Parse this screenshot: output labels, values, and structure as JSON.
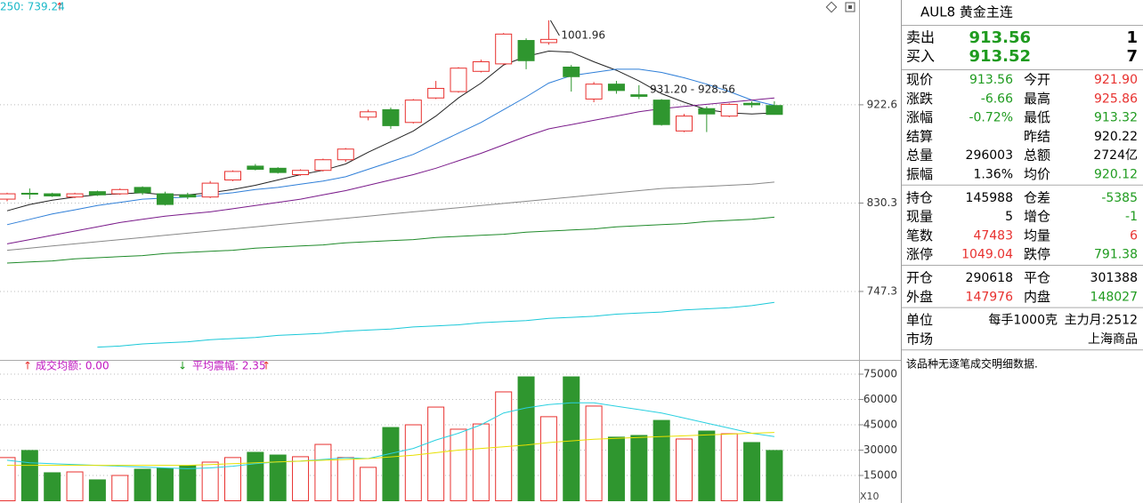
{
  "chart_data": [
    {
      "type": "candlestick",
      "legend_text": "250: 739.24",
      "legend_color": "#1ab8c8",
      "up_color": "#e8312f",
      "down_color": "#2f962f",
      "open": [
        834,
        839.5,
        839,
        836,
        841,
        839,
        845,
        839,
        838,
        836,
        852,
        865,
        863,
        857,
        861,
        871,
        911,
        918,
        906,
        929,
        935,
        954,
        961,
        983,
        981,
        958,
        928,
        942,
        932,
        927,
        898,
        919,
        912,
        924,
        921.9
      ],
      "high": [
        840,
        844,
        840,
        840,
        842,
        844,
        846,
        841,
        840,
        851,
        861,
        867,
        864,
        862,
        872,
        882,
        918,
        920,
        928,
        945,
        958,
        965,
        990,
        985,
        1001.96,
        960,
        944,
        945,
        941,
        928,
        914,
        921,
        924,
        925.86,
        925.86
      ],
      "low": [
        832,
        834,
        836,
        835,
        837,
        838,
        838,
        828,
        834,
        835,
        851,
        861,
        858,
        856,
        860,
        869,
        908,
        900,
        905,
        928,
        934,
        953,
        960,
        956,
        979,
        935,
        925,
        933,
        928,
        903,
        897,
        897,
        911,
        920,
        913.32
      ],
      "close": [
        839,
        839,
        837,
        839,
        838,
        843,
        840,
        829,
        836,
        849,
        860,
        862,
        859,
        861,
        871,
        881,
        916,
        903,
        927,
        938,
        957,
        963,
        989,
        964,
        984,
        949,
        942,
        936,
        930.5,
        904,
        912,
        914,
        923,
        922.6,
        913.56
      ],
      "series": [
        {
          "color": "#222222",
          "values": [
            823,
            829,
            833,
            836,
            838,
            839,
            840,
            838,
            838,
            840,
            843,
            847,
            852,
            857,
            861,
            867,
            878,
            888,
            898,
            912,
            929,
            943,
            960,
            968,
            973,
            972,
            963,
            955,
            945,
            933,
            925,
            918,
            915,
            914,
            915
          ]
        },
        {
          "color": "#2f7fd8",
          "values": [
            810,
            815,
            820,
            824,
            828,
            831,
            834,
            835,
            836,
            838,
            840,
            843,
            845,
            848,
            851,
            855,
            862,
            869,
            876,
            886,
            896,
            906,
            918,
            930,
            943,
            950,
            953,
            956,
            956,
            953,
            948,
            942,
            935,
            927,
            922
          ]
        },
        {
          "color": "#7a1a8a",
          "values": [
            792,
            796,
            800,
            804,
            808,
            812,
            815,
            818,
            820,
            822,
            825,
            828,
            831,
            834,
            838,
            842,
            847,
            852,
            857,
            863,
            870,
            877,
            885,
            893,
            900,
            904,
            908,
            912,
            916,
            919,
            921,
            923,
            925,
            927,
            929
          ]
        },
        {
          "color": "#888888",
          "values": [
            786,
            788,
            790,
            792,
            794,
            796,
            798,
            800,
            802,
            804,
            806,
            808,
            810,
            812,
            814,
            816,
            818,
            820,
            822,
            824,
            826,
            828,
            830,
            832,
            834,
            836,
            838,
            840,
            842,
            844,
            845,
            846,
            847,
            848,
            850
          ]
        },
        {
          "color": "#1f8a2a",
          "values": [
            774,
            775,
            776,
            778,
            779,
            780,
            781,
            783,
            784,
            785,
            786,
            788,
            789,
            790,
            791,
            793,
            794,
            795,
            796,
            798,
            799,
            800,
            801,
            803,
            804,
            805,
            806,
            808,
            809,
            810,
            811,
            813,
            814,
            815,
            817
          ]
        },
        {
          "color": "#1ac8d8",
          "values": [
            null,
            null,
            null,
            null,
            695,
            696,
            698,
            699,
            700,
            702,
            703,
            704,
            706,
            707,
            708,
            710,
            711,
            712,
            714,
            715,
            716,
            718,
            719,
            720,
            722,
            723,
            724,
            726,
            727,
            728,
            730,
            731,
            732,
            734,
            737
          ]
        }
      ],
      "annotations": [
        "1001.96",
        "931.20 - 928.56"
      ],
      "ylim": [
        683,
        1021
      ],
      "yticks": [
        922.6,
        830.3,
        747.3
      ],
      "grid": true
    },
    {
      "type": "bar",
      "legend_texts": [
        "成交均额: 0.00",
        "平均震幅: 2.35"
      ],
      "legend_color": "#c018c0",
      "axis_note": "X10",
      "values": [
        25600,
        29800,
        16600,
        17100,
        12400,
        15000,
        18700,
        19200,
        20800,
        22900,
        25600,
        28700,
        27100,
        26100,
        33400,
        25600,
        19800,
        43400,
        45000,
        55500,
        42400,
        45500,
        64500,
        73400,
        49800,
        73400,
        56100,
        37700,
        38700,
        47600,
        36600,
        41300,
        39700,
        34500,
        29800
      ],
      "series": [
        {
          "color": "#2ad0e0",
          "values": [
            24000,
            22500,
            22000,
            21500,
            21000,
            20500,
            20000,
            19500,
            19000,
            19500,
            20500,
            22000,
            23000,
            23500,
            24500,
            25500,
            25000,
            28000,
            31000,
            36000,
            40000,
            45000,
            52000,
            55000,
            57000,
            58000,
            58000,
            56000,
            54000,
            52000,
            49000,
            46000,
            43000,
            40000,
            38000
          ]
        },
        {
          "color": "#e8e000",
          "values": [
            21000,
            21000,
            21000,
            21000,
            21000,
            21000,
            21000,
            21000,
            21000,
            21500,
            22000,
            22500,
            23000,
            23500,
            24000,
            24500,
            25000,
            26000,
            27000,
            28500,
            30000,
            31000,
            32000,
            33000,
            34500,
            35500,
            36500,
            37000,
            37500,
            38000,
            38500,
            39000,
            39500,
            40000,
            40500
          ]
        }
      ],
      "ylim": [
        0,
        80800
      ],
      "yticks": [
        75000,
        60000,
        45000,
        30000,
        15000
      ],
      "grid": true
    }
  ],
  "panel": {
    "title": "AUL8 黄金主连",
    "quotes": [
      [
        "卖出",
        "913.56",
        "1"
      ],
      [
        "买入",
        "913.52",
        "7"
      ]
    ],
    "quote_color": "#1f9b1f",
    "groups": [
      [
        [
          "现价",
          {
            "text": "913.56",
            "color": "#1f9b1f"
          },
          "今开",
          {
            "text": "921.90",
            "color": "#e8312f"
          }
        ],
        [
          "涨跌",
          {
            "text": "-6.66",
            "color": "#1f9b1f"
          },
          "最高",
          {
            "text": "925.86",
            "color": "#e8312f"
          }
        ],
        [
          "涨幅",
          {
            "text": "-0.72%",
            "color": "#1f9b1f"
          },
          "最低",
          {
            "text": "913.32",
            "color": "#1f9b1f"
          }
        ],
        [
          "结算",
          null,
          "昨结",
          {
            "text": "920.22",
            "color": "#000000"
          }
        ],
        [
          "总量",
          {
            "text": "296003",
            "color": "#000000"
          },
          "总额",
          {
            "text": "2724亿",
            "color": "#000000"
          }
        ],
        [
          "振幅",
          {
            "text": "1.36%",
            "color": "#000000"
          },
          "均价",
          {
            "text": "920.12",
            "color": "#1f9b1f"
          }
        ]
      ],
      [
        [
          "持仓",
          {
            "text": "145988",
            "color": "#000000"
          },
          "仓差",
          {
            "text": "-5385",
            "color": "#1f9b1f"
          }
        ],
        [
          "现量",
          {
            "text": "5",
            "color": "#000000"
          },
          "增仓",
          {
            "text": "-1",
            "color": "#1f9b1f"
          }
        ],
        [
          "笔数",
          {
            "text": "47483",
            "color": "#e8312f"
          },
          "均量",
          {
            "text": "6",
            "color": "#e8312f"
          }
        ],
        [
          "涨停",
          {
            "text": "1049.04",
            "color": "#e8312f"
          },
          "跌停",
          {
            "text": "791.38",
            "color": "#1f9b1f"
          }
        ]
      ],
      [
        [
          "开仓",
          {
            "text": "290618",
            "color": "#000000"
          },
          "平仓",
          {
            "text": "301388",
            "color": "#000000"
          }
        ],
        [
          "外盘",
          {
            "text": "147976",
            "color": "#e8312f"
          },
          "内盘",
          {
            "text": "148027",
            "color": "#1f9b1f"
          }
        ]
      ]
    ],
    "info": [
      [
        "单位",
        "每手1000克",
        "主力月:2512"
      ],
      [
        "市场",
        "上海商品"
      ]
    ],
    "note": "该品种无逐笔成交明细数据."
  }
}
